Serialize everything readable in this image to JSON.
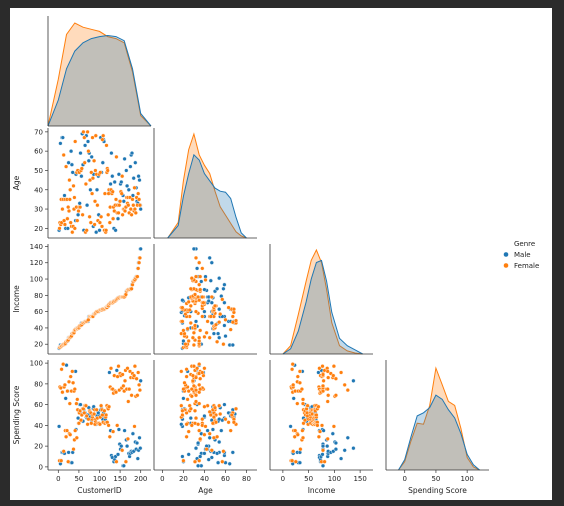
{
  "chart_data": {
    "type": "scatter",
    "kind": "pairplot-corner",
    "variables": [
      "CustomerID",
      "Age",
      "Income",
      "Spending Score"
    ],
    "hue": "Genre",
    "legend": {
      "title": "Genre",
      "placement": "right",
      "entries": [
        "Male",
        "Female"
      ]
    },
    "colors": {
      "Male": "#1f77b4",
      "Female": "#ff7f0e"
    },
    "ticks": {
      "CustomerID": [
        0,
        50,
        100,
        150,
        200
      ],
      "Age": [
        20,
        30,
        40,
        50,
        60,
        70
      ],
      "Age_x": [
        0,
        20,
        40,
        60,
        80
      ],
      "Income": [
        20,
        40,
        60,
        80,
        100,
        120,
        140
      ],
      "Income_x": [
        0,
        50,
        100,
        150
      ],
      "Spending Score": [
        0,
        20,
        40,
        60,
        80,
        100
      ],
      "Spending Score_x": [
        0,
        50,
        100
      ]
    },
    "ranges": {
      "CustomerID": [
        -25,
        225
      ],
      "Age": [
        15,
        72
      ],
      "Age_x": [
        -8,
        90
      ],
      "Income": [
        8,
        143
      ],
      "Income_x": [
        -25,
        175
      ],
      "Spending Score": [
        -3,
        103
      ],
      "Spending Score_x": [
        -30,
        135
      ]
    },
    "kde": {
      "CustomerID": {
        "x": [
          -25,
          0,
          20,
          40,
          60,
          80,
          100,
          120,
          140,
          160,
          180,
          200,
          225
        ],
        "Male": [
          0,
          0.25,
          0.55,
          0.72,
          0.8,
          0.84,
          0.86,
          0.87,
          0.86,
          0.82,
          0.55,
          0.12,
          0
        ],
        "Female": [
          0,
          0.45,
          0.88,
          0.99,
          0.95,
          0.93,
          0.91,
          0.86,
          0.84,
          0.8,
          0.52,
          0.1,
          0
        ]
      },
      "Age": {
        "x": [
          5,
          15,
          20,
          25,
          30,
          35,
          40,
          45,
          50,
          55,
          60,
          65,
          70,
          75,
          80
        ],
        "Male": [
          0,
          0.12,
          0.4,
          0.62,
          0.8,
          0.75,
          0.62,
          0.55,
          0.48,
          0.45,
          0.44,
          0.38,
          0.2,
          0.05,
          0
        ],
        "Female": [
          0,
          0.15,
          0.55,
          0.85,
          1.0,
          0.8,
          0.7,
          0.62,
          0.45,
          0.3,
          0.22,
          0.14,
          0.06,
          0.02,
          0
        ]
      },
      "Income": {
        "x": [
          0,
          15,
          30,
          45,
          55,
          65,
          75,
          85,
          95,
          110,
          125,
          140,
          155
        ],
        "Male": [
          0,
          0.05,
          0.22,
          0.5,
          0.72,
          0.88,
          0.9,
          0.7,
          0.4,
          0.15,
          0.08,
          0.04,
          0
        ],
        "Female": [
          0,
          0.08,
          0.38,
          0.7,
          0.9,
          1.0,
          0.88,
          0.62,
          0.3,
          0.08,
          0.03,
          0.01,
          0
        ]
      },
      "Spending Score": {
        "x": [
          -10,
          0,
          10,
          20,
          30,
          40,
          50,
          60,
          70,
          80,
          90,
          100,
          110,
          120
        ],
        "Male": [
          0,
          0.1,
          0.32,
          0.52,
          0.55,
          0.6,
          0.72,
          0.68,
          0.58,
          0.5,
          0.35,
          0.15,
          0.05,
          0
        ],
        "Female": [
          0,
          0.08,
          0.28,
          0.45,
          0.44,
          0.62,
          0.98,
          0.82,
          0.66,
          0.62,
          0.4,
          0.12,
          0.03,
          0
        ]
      }
    },
    "points": {
      "Male": [
        [
          2,
          19,
          15,
          39
        ],
        [
          5,
          64,
          19,
          3
        ],
        [
          9,
          67,
          19,
          14
        ],
        [
          11,
          67,
          19,
          14
        ],
        [
          15,
          37,
          20,
          13
        ],
        [
          18,
          20,
          21,
          66
        ],
        [
          20,
          35,
          23,
          98
        ],
        [
          23,
          20,
          24,
          73
        ],
        [
          25,
          54,
          28,
          14
        ],
        [
          31,
          60,
          30,
          4
        ],
        [
          33,
          53,
          33,
          4
        ],
        [
          35,
          49,
          33,
          14
        ],
        [
          42,
          24,
          38,
          92
        ],
        [
          43,
          48,
          39,
          36
        ],
        [
          48,
          27,
          40,
          47
        ],
        [
          52,
          33,
          42,
          60
        ],
        [
          54,
          59,
          43,
          60
        ],
        [
          56,
          47,
          46,
          45
        ],
        [
          58,
          69,
          46,
          51
        ],
        [
          60,
          53,
          46,
          44
        ],
        [
          62,
          19,
          46,
          55
        ],
        [
          65,
          63,
          48,
          52
        ],
        [
          68,
          68,
          48,
          48
        ],
        [
          70,
          32,
          48,
          47
        ],
        [
          72,
          65,
          48,
          50
        ],
        [
          74,
          55,
          54,
          57
        ],
        [
          75,
          59,
          54,
          47
        ],
        [
          78,
          40,
          54,
          48
        ],
        [
          81,
          57,
          54,
          45
        ],
        [
          85,
          21,
          55,
          56
        ],
        [
          86,
          48,
          57,
          58
        ],
        [
          92,
          18,
          59,
          41
        ],
        [
          94,
          40,
          60,
          49
        ],
        [
          97,
          47,
          60,
          52
        ],
        [
          98,
          27,
          60,
          42
        ],
        [
          100,
          19,
          61,
          49
        ],
        [
          103,
          67,
          62,
          55
        ],
        [
          105,
          49,
          62,
          56
        ],
        [
          108,
          54,
          63,
          46
        ],
        [
          110,
          66,
          63,
          52
        ],
        [
          111,
          65,
          63,
          49
        ],
        [
          114,
          19,
          64,
          46
        ],
        [
          124,
          39,
          69,
          91
        ],
        [
          127,
          43,
          71,
          35
        ],
        [
          129,
          59,
          71,
          11
        ],
        [
          131,
          47,
          71,
          9
        ],
        [
          135,
          20,
          73,
          5
        ],
        [
          137,
          44,
          73,
          7
        ],
        [
          139,
          19,
          74,
          10
        ],
        [
          142,
          32,
          75,
          93
        ],
        [
          145,
          25,
          77,
          12
        ],
        [
          147,
          48,
          77,
          36
        ],
        [
          149,
          34,
          78,
          22
        ],
        [
          151,
          43,
          78,
          17
        ],
        [
          153,
          44,
          78,
          20
        ],
        [
          157,
          37,
          78,
          1
        ],
        [
          159,
          34,
          78,
          1
        ],
        [
          161,
          56,
          79,
          35
        ],
        [
          165,
          50,
          85,
          26
        ],
        [
          167,
          42,
          86,
          20
        ],
        [
          171,
          40,
          87,
          13
        ],
        [
          173,
          36,
          87,
          10
        ],
        [
          175,
          52,
          88,
          13
        ],
        [
          177,
          58,
          88,
          15
        ],
        [
          179,
          59,
          93,
          14
        ],
        [
          181,
          37,
          97,
          32
        ],
        [
          183,
          46,
          98,
          15
        ],
        [
          187,
          54,
          101,
          24
        ],
        [
          189,
          41,
          103,
          17
        ],
        [
          191,
          34,
          103,
          23
        ],
        [
          193,
          33,
          113,
          8
        ],
        [
          195,
          47,
          120,
          16
        ],
        [
          197,
          45,
          126,
          28
        ],
        [
          199,
          32,
          137,
          18
        ],
        [
          200,
          30,
          137,
          83
        ]
      ],
      "Female": [
        [
          3,
          20,
          16,
          6
        ],
        [
          4,
          23,
          16,
          77
        ],
        [
          6,
          22,
          17,
          76
        ],
        [
          7,
          35,
          18,
          6
        ],
        [
          8,
          23,
          18,
          94
        ],
        [
          10,
          30,
          19,
          72
        ],
        [
          12,
          35,
          19,
          99
        ],
        [
          13,
          58,
          20,
          15
        ],
        [
          14,
          24,
          20,
          77
        ],
        [
          16,
          22,
          20,
          79
        ],
        [
          17,
          35,
          21,
          35
        ],
        [
          19,
          52,
          23,
          29
        ],
        [
          21,
          35,
          24,
          35
        ],
        [
          22,
          25,
          24,
          73
        ],
        [
          24,
          31,
          25,
          5
        ],
        [
          26,
          29,
          28,
          82
        ],
        [
          27,
          45,
          28,
          32
        ],
        [
          28,
          35,
          28,
          61
        ],
        [
          29,
          40,
          29,
          31
        ],
        [
          30,
          23,
          29,
          87
        ],
        [
          32,
          21,
          30,
          73
        ],
        [
          34,
          18,
          33,
          92
        ],
        [
          36,
          21,
          33,
          81
        ],
        [
          37,
          42,
          34,
          17
        ],
        [
          38,
          30,
          34,
          73
        ],
        [
          39,
          36,
          37,
          26
        ],
        [
          40,
          20,
          37,
          75
        ],
        [
          41,
          65,
          38,
          35
        ],
        [
          44,
          31,
          39,
          61
        ],
        [
          45,
          49,
          39,
          28
        ],
        [
          46,
          24,
          39,
          65
        ],
        [
          47,
          50,
          40,
          55
        ],
        [
          49,
          29,
          40,
          42
        ],
        [
          50,
          31,
          40,
          42
        ],
        [
          51,
          49,
          42,
          52
        ],
        [
          53,
          31,
          43,
          54
        ],
        [
          55,
          50,
          43,
          45
        ],
        [
          57,
          51,
          44,
          50
        ],
        [
          59,
          27,
          46,
          56
        ],
        [
          61,
          70,
          46,
          56
        ],
        [
          63,
          67,
          47,
          52
        ],
        [
          64,
          54,
          47,
          59
        ],
        [
          66,
          18,
          48,
          59
        ],
        [
          67,
          43,
          48,
          59
        ],
        [
          69,
          19,
          48,
          49
        ],
        [
          71,
          70,
          49,
          41
        ],
        [
          73,
          60,
          50,
          46
        ],
        [
          76,
          26,
          54,
          54
        ],
        [
          77,
          45,
          54,
          53
        ],
        [
          79,
          23,
          54,
          52
        ],
        [
          80,
          49,
          54,
          42
        ],
        [
          82,
          38,
          54,
          46
        ],
        [
          83,
          67,
          54,
          48
        ],
        [
          84,
          46,
          54,
          50
        ],
        [
          87,
          55,
          57,
          51
        ],
        [
          88,
          22,
          57,
          55
        ],
        [
          89,
          34,
          58,
          41
        ],
        [
          90,
          50,
          58,
          44
        ],
        [
          91,
          68,
          59,
          46
        ],
        [
          93,
          48,
          60,
          55
        ],
        [
          95,
          32,
          60,
          47
        ],
        [
          96,
          24,
          60,
          42
        ],
        [
          99,
          48,
          61,
          42
        ],
        [
          101,
          23,
          62,
          41
        ],
        [
          102,
          49,
          62,
          48
        ],
        [
          104,
          26,
          62,
          59
        ],
        [
          106,
          21,
          62,
          55
        ],
        [
          107,
          66,
          63,
          50
        ],
        [
          109,
          68,
          63,
          43
        ],
        [
          112,
          19,
          63,
          54
        ],
        [
          113,
          38,
          64,
          42
        ],
        [
          115,
          18,
          65,
          48
        ],
        [
          116,
          19,
          65,
          50
        ],
        [
          117,
          63,
          65,
          43
        ],
        [
          118,
          49,
          65,
          59
        ],
        [
          119,
          51,
          67,
          43
        ],
        [
          120,
          50,
          67,
          57
        ],
        [
          121,
          27,
          67,
          56
        ],
        [
          122,
          38,
          67,
          40
        ],
        [
          123,
          40,
          69,
          58
        ],
        [
          125,
          23,
          70,
          29
        ],
        [
          126,
          31,
          70,
          77
        ],
        [
          128,
          40,
          71,
          95
        ],
        [
          130,
          38,
          71,
          75
        ],
        [
          132,
          39,
          71,
          75
        ],
        [
          133,
          25,
          72,
          34
        ],
        [
          134,
          31,
          72,
          71
        ],
        [
          136,
          29,
          73,
          88
        ],
        [
          138,
          32,
          73,
          73
        ],
        [
          140,
          35,
          74,
          72
        ],
        [
          141,
          57,
          75,
          5
        ],
        [
          143,
          28,
          76,
          40
        ],
        [
          144,
          32,
          76,
          87
        ],
        [
          146,
          28,
          77,
          97
        ],
        [
          148,
          32,
          77,
          74
        ],
        [
          150,
          34,
          78,
          90
        ],
        [
          152,
          39,
          78,
          88
        ],
        [
          154,
          38,
          78,
          76
        ],
        [
          155,
          47,
          78,
          16
        ],
        [
          156,
          27,
          78,
          89
        ],
        [
          158,
          30,
          78,
          78
        ],
        [
          160,
          30,
          78,
          73
        ],
        [
          162,
          29,
          79,
          83
        ],
        [
          163,
          31,
          81,
          93
        ],
        [
          164,
          31,
          81,
          5
        ],
        [
          166,
          36,
          85,
          75
        ],
        [
          168,
          33,
          86,
          95
        ],
        [
          169,
          36,
          87,
          27
        ],
        [
          170,
          32,
          87,
          63
        ],
        [
          172,
          28,
          87,
          75
        ],
        [
          174,
          36,
          87,
          92
        ],
        [
          176,
          30,
          88,
          86
        ],
        [
          178,
          27,
          88,
          69
        ],
        [
          180,
          35,
          93,
          90
        ],
        [
          182,
          32,
          97,
          86
        ],
        [
          184,
          29,
          98,
          88
        ],
        [
          185,
          41,
          99,
          39
        ],
        [
          186,
          30,
          99,
          97
        ],
        [
          188,
          28,
          101,
          68
        ],
        [
          190,
          36,
          103,
          85
        ],
        [
          192,
          32,
          103,
          69
        ],
        [
          194,
          38,
          113,
          91
        ],
        [
          196,
          35,
          120,
          79
        ],
        [
          198,
          32,
          126,
          74
        ]
      ]
    }
  }
}
